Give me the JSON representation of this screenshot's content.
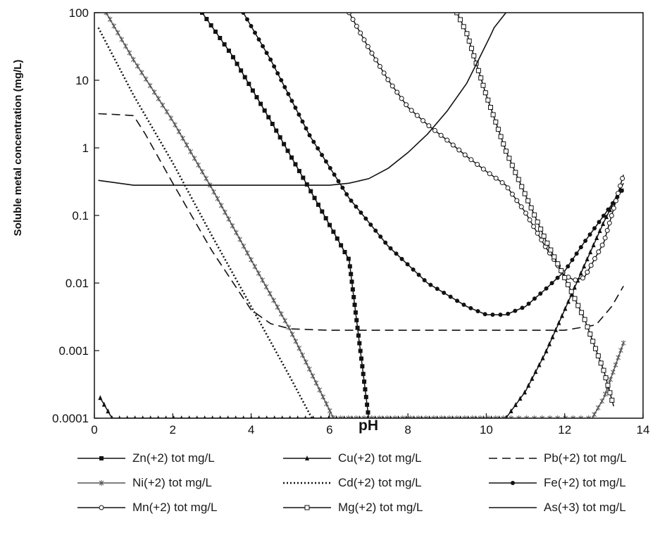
{
  "chart_data": {
    "type": "line",
    "title": "",
    "xlabel": "pH",
    "ylabel": "Soluble metal concentration (mg/L)",
    "xlim": [
      0,
      14
    ],
    "ylim": [
      0.0001,
      100
    ],
    "yscale": "log",
    "grid": false,
    "legend_position": "bottom",
    "xticks": [
      "0",
      "2",
      "4",
      "6",
      "8",
      "10",
      "12",
      "14"
    ],
    "yticks": [
      "0.0001",
      "0.001",
      "0.01",
      "0.1",
      "1",
      "10",
      "100"
    ],
    "series": [
      {
        "name": "Zn(+2) tot mg/L",
        "color": "#111111",
        "dash": "",
        "marker": "square",
        "x": [
          2.75,
          3.5,
          4.5,
          5.5,
          6.5,
          7.0
        ],
        "y": [
          100,
          24,
          2.5,
          0.24,
          0.022,
          0.0001
        ]
      },
      {
        "name": "Cu(+2) tot mg/L",
        "color": "#111111",
        "dash": "",
        "marker": "triangle",
        "x": [
          0.15,
          0.45,
          10.5,
          11.0,
          11.5,
          12.0,
          12.5,
          13.0,
          13.5
        ],
        "y": [
          0.0002,
          0.0001,
          0.0001,
          0.00025,
          0.0009,
          0.004,
          0.018,
          0.08,
          0.3
        ]
      },
      {
        "name": "Pb(+2) tot mg/L",
        "color": "#111111",
        "dash": "12,7",
        "marker": "none",
        "x": [
          0.1,
          0.6,
          1.0,
          1.3,
          2.0,
          3.0,
          4.0,
          4.5,
          5.0,
          6.0,
          8.0,
          10.0,
          12.0,
          12.8,
          13.2,
          13.5
        ],
        "y": [
          3.2,
          3.1,
          3.0,
          1.6,
          0.3,
          0.03,
          0.004,
          0.0025,
          0.0021,
          0.002,
          0.002,
          0.002,
          0.002,
          0.0024,
          0.0045,
          0.009
        ]
      },
      {
        "name": "Ni(+2) tot mg/L",
        "color": "#555555",
        "dash": "",
        "marker": "star",
        "x": [
          0.3,
          1.0,
          2.0,
          3.0,
          4.0,
          5.0,
          6.1,
          12.7,
          13.0,
          13.5
        ],
        "y": [
          100,
          20,
          2.5,
          0.25,
          0.022,
          0.002,
          0.0001,
          0.0001,
          0.0002,
          0.0013
        ]
      },
      {
        "name": "Cd(+2) tot mg/L",
        "color": "#111111",
        "dash": "2,3",
        "marker": "none",
        "x": [
          0.1,
          1.0,
          2.0,
          3.0,
          4.0,
          5.0,
          5.55
        ],
        "y": [
          60,
          6,
          0.6,
          0.05,
          0.0045,
          0.0004,
          0.0001
        ]
      },
      {
        "name": "Fe(+2) tot mg/L",
        "color": "#111111",
        "dash": "",
        "marker": "circle-filled",
        "x": [
          3.8,
          4.5,
          5.5,
          6.5,
          7.5,
          8.5,
          9.5,
          10.0,
          10.5,
          11.0,
          11.5,
          12.0,
          12.5,
          13.0,
          13.5
        ],
        "y": [
          100,
          20,
          1.5,
          0.18,
          0.035,
          0.01,
          0.0045,
          0.0034,
          0.0034,
          0.0045,
          0.008,
          0.015,
          0.04,
          0.1,
          0.25
        ]
      },
      {
        "name": "Mn(+2) tot mg/L",
        "color": "#111111",
        "dash": "",
        "marker": "circle-open",
        "x": [
          6.5,
          7.0,
          7.5,
          8.0,
          8.5,
          9.0,
          9.5,
          10.0,
          10.5,
          11.0,
          11.5,
          12.0,
          12.25,
          12.5,
          13.0,
          13.5
        ],
        "y": [
          100,
          30,
          10,
          4.0,
          2.2,
          1.3,
          0.75,
          0.45,
          0.28,
          0.11,
          0.035,
          0.013,
          0.011,
          0.012,
          0.04,
          0.4
        ]
      },
      {
        "name": "Mg(+2) tot mg/L",
        "color": "#111111",
        "dash": "",
        "marker": "square-open",
        "x": [
          9.25,
          9.5,
          10.0,
          10.5,
          11.0,
          11.5,
          12.0,
          12.5,
          13.0,
          13.25
        ],
        "y": [
          100,
          50,
          6,
          0.9,
          0.2,
          0.045,
          0.012,
          0.003,
          0.0005,
          0.00015
        ]
      },
      {
        "name": "As(+3) tot mg/L",
        "color": "#111111",
        "dash": "",
        "marker": "none",
        "x": [
          0.1,
          1.0,
          2.0,
          4.0,
          6.0,
          6.5,
          7.0,
          7.5,
          8.0,
          8.5,
          9.0,
          9.5,
          9.8,
          10.1,
          10.2,
          10.5
        ],
        "y": [
          0.33,
          0.28,
          0.28,
          0.28,
          0.28,
          0.3,
          0.35,
          0.5,
          0.85,
          1.6,
          3.5,
          9.0,
          20,
          45,
          60,
          100
        ]
      }
    ]
  }
}
